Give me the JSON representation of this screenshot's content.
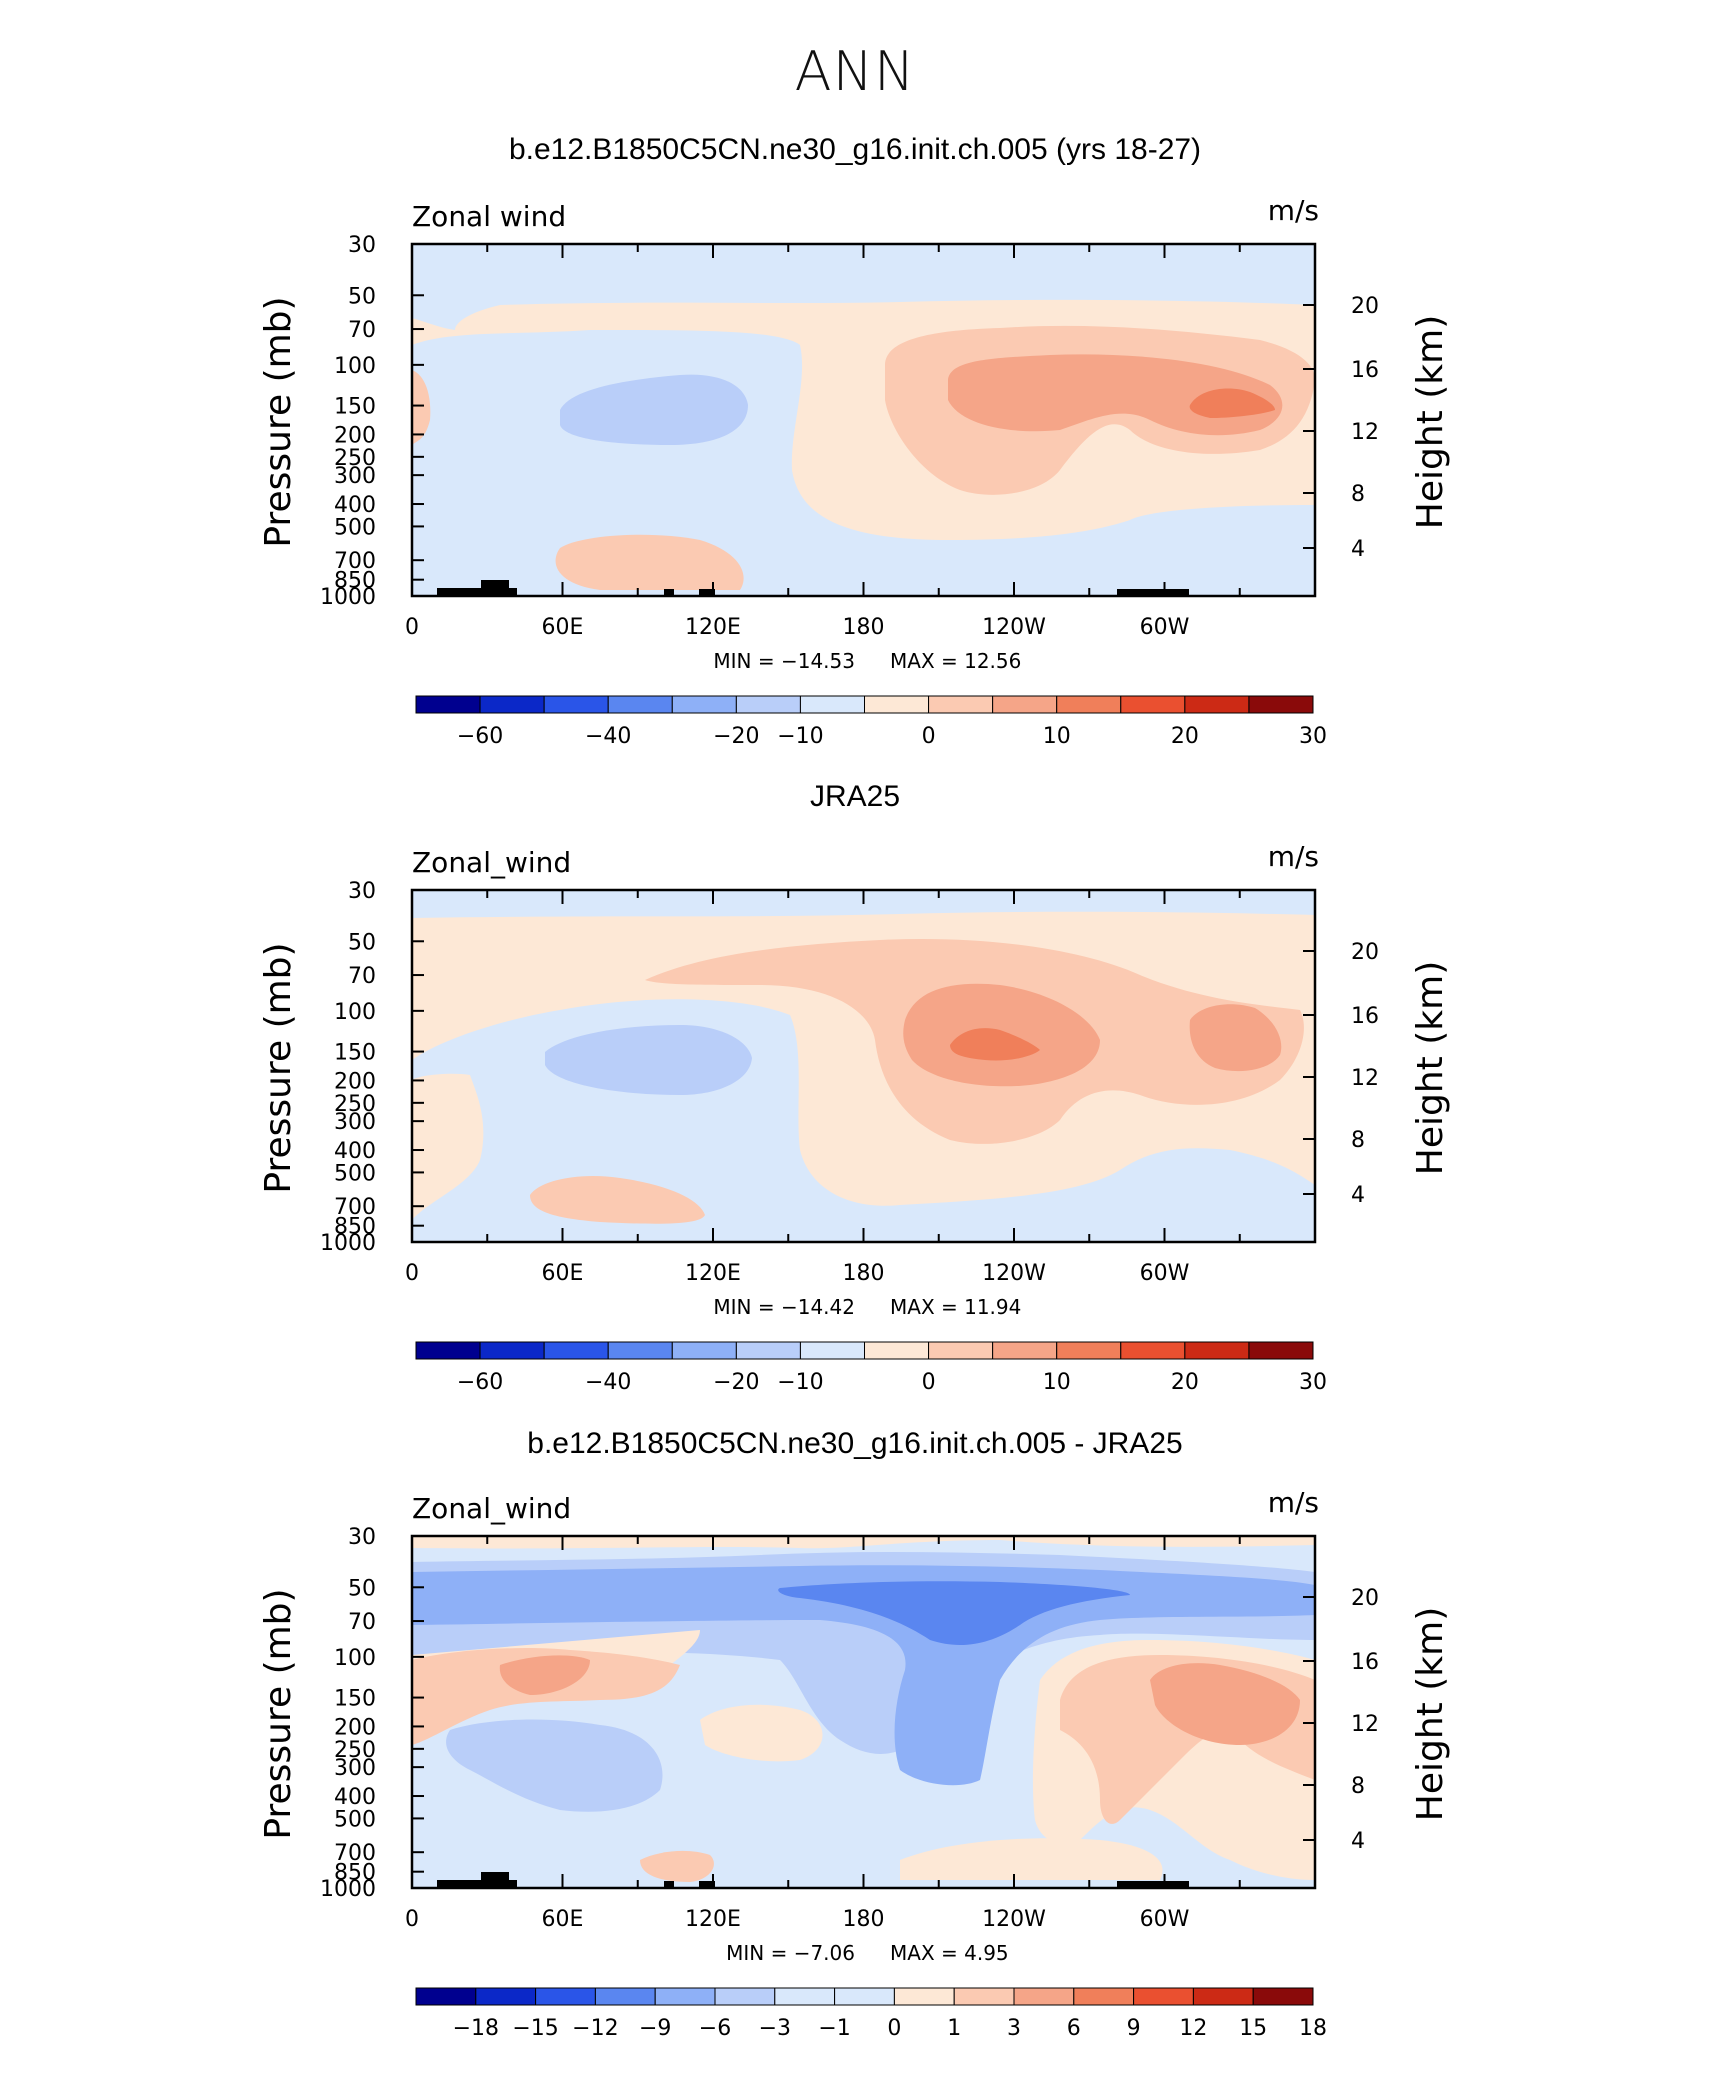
{
  "main_title": "ANN",
  "colors": {
    "d7": "#00008f",
    "d6": "#0b28c8",
    "d5": "#2a55e8",
    "d4": "#5a86f0",
    "d3": "#8eb0f7",
    "d2": "#b9cef9",
    "d1": "#d9e8fb",
    "u1": "#fde8d6",
    "u2": "#fbcab2",
    "u3": "#f5a588",
    "u4": "#f07f5a",
    "u5": "#ea5030",
    "u6": "#cc2a15",
    "u7": "#8a0a0a"
  },
  "chart_data": [
    {
      "type": "heatmap",
      "title": "b.e12.B1850C5CN.ne30_g16.init.ch.005 (yrs 18-27)",
      "left_label": "Zonal wind",
      "units": "m/s",
      "ylabel": "Pressure (mb)",
      "ylabel_right": "Height (km)",
      "x_ticks": [
        "0",
        "60E",
        "120E",
        "180",
        "120W",
        "60W"
      ],
      "y_ticks": [
        "30",
        "50",
        "70",
        "100",
        "150",
        "200",
        "250",
        "300",
        "400",
        "500",
        "700",
        "850",
        "1000"
      ],
      "y_right_ticks": [
        "20",
        "16",
        "12",
        "8",
        "4"
      ],
      "min_label": "MIN = −14.53",
      "max_label": "MAX =  12.56",
      "colorbar_labels": [
        "−60",
        "−40",
        "−20",
        "−10",
        "0",
        "10",
        "20",
        "30"
      ]
    },
    {
      "type": "heatmap",
      "title": "JRA25",
      "left_label": "Zonal_wind",
      "units": "m/s",
      "ylabel": "Pressure (mb)",
      "ylabel_right": "Height (km)",
      "x_ticks": [
        "0",
        "60E",
        "120E",
        "180",
        "120W",
        "60W"
      ],
      "y_ticks": [
        "30",
        "50",
        "70",
        "100",
        "150",
        "200",
        "250",
        "300",
        "400",
        "500",
        "700",
        "850",
        "1000"
      ],
      "y_right_ticks": [
        "20",
        "16",
        "12",
        "8",
        "4"
      ],
      "min_label": "MIN = −14.42",
      "max_label": "MAX =  11.94",
      "colorbar_labels": [
        "−60",
        "−40",
        "−20",
        "−10",
        "0",
        "10",
        "20",
        "30"
      ]
    },
    {
      "type": "heatmap",
      "title": "b.e12.B1850C5CN.ne30_g16.init.ch.005 - JRA25",
      "left_label": "Zonal_wind",
      "units": "m/s",
      "ylabel": "Pressure (mb)",
      "ylabel_right": "Height (km)",
      "x_ticks": [
        "0",
        "60E",
        "120E",
        "180",
        "120W",
        "60W"
      ],
      "y_ticks": [
        "30",
        "50",
        "70",
        "100",
        "150",
        "200",
        "250",
        "300",
        "400",
        "500",
        "700",
        "850",
        "1000"
      ],
      "y_right_ticks": [
        "20",
        "16",
        "12",
        "8",
        "4"
      ],
      "min_label": "MIN =  −7.06",
      "max_label": "MAX =   4.95",
      "colorbar_labels": [
        "−18",
        "−15",
        "−12",
        "−9",
        "−6",
        "−3",
        "−1",
        "0",
        "1",
        "3",
        "6",
        "9",
        "12",
        "15",
        "18"
      ]
    }
  ]
}
